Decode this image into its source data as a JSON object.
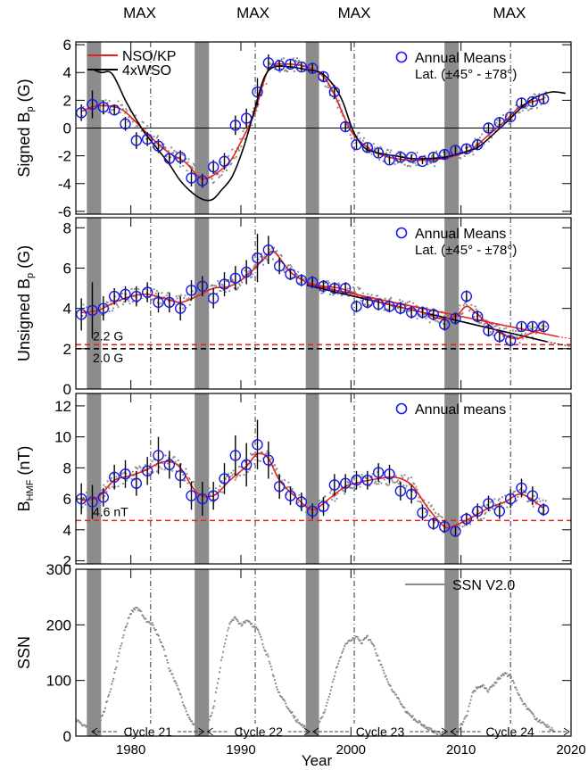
{
  "figure": {
    "max_labels": [
      {
        "text": "MAX",
        "year": 1980.8
      },
      {
        "text": "MAX",
        "year": 1991.1
      },
      {
        "text": "MAX",
        "year": 2000.3
      },
      {
        "text": "MAX",
        "year": 2014.4
      }
    ],
    "xlabel": "Year",
    "xlim": [
      1975,
      2020
    ],
    "xticks": [
      "1980",
      "1990",
      "2000",
      "2010",
      "2020"
    ],
    "xtick_values": [
      1980,
      1990,
      2000,
      2010,
      2020
    ],
    "minimum_bands": [
      [
        1976.0,
        1977.3
      ],
      [
        1985.8,
        1987.1
      ],
      [
        1995.9,
        1997.1
      ],
      [
        2008.5,
        2009.8
      ]
    ],
    "max_lines": [
      1981.8,
      1991.3,
      2000.3,
      2014.5
    ],
    "colors": {
      "red": "#e82020",
      "blue": "#1a1ae6",
      "band": "#8c8c8c",
      "gray": "#8c8c8c",
      "black": "#000000"
    }
  },
  "chart_data": [
    {
      "type": "line",
      "ylabel": "Signed B",
      "ylabel_sub": "p",
      "ylabel_unit": " (G)",
      "ylim": [
        -6.2,
        6.2
      ],
      "yticks": [
        "6",
        "4",
        "2",
        "0",
        "-2",
        "-4",
        "-6"
      ],
      "ytick_values": [
        6,
        4,
        2,
        0,
        -2,
        -4,
        -6
      ],
      "legend": [
        {
          "name": "NSO/KP",
          "color": "#e82020"
        },
        {
          "name": "4xWSO",
          "color": "#000000"
        }
      ],
      "legend_right": {
        "label": "Annual Means",
        "note": "Lat. (±45° - ±78°)"
      },
      "zero_line": true,
      "series": [
        {
          "name": "NSO/KP",
          "x": [
            1975.5,
            1977,
            1979,
            1980.5,
            1982,
            1983.5,
            1985,
            1986.3,
            1987.5,
            1989,
            1990,
            1991.2,
            1992.5,
            1994,
            1996,
            1997.5,
            1998.5,
            2000,
            2001.5,
            2003,
            2005,
            2007,
            2009,
            2011,
            2012.5,
            2014,
            2015.5,
            2017.5
          ],
          "y": [
            1.2,
            1.6,
            1.4,
            0.4,
            -0.8,
            -1.8,
            -2.5,
            -3.6,
            -3.4,
            -2.4,
            -1,
            1,
            4.2,
            4.6,
            4.4,
            3.7,
            2.4,
            -0.2,
            -1.4,
            -2,
            -2.3,
            -2.3,
            -2.1,
            -1.5,
            -0.5,
            0.5,
            1.6,
            2.1
          ]
        },
        {
          "name": "4xWSO",
          "x": [
            1976.6,
            1977.3,
            1978.3,
            1979.5,
            1980.5,
            1981.3,
            1982.5,
            1983.5,
            1984.5,
            1985.8,
            1986.8,
            1987.5,
            1988.2,
            1989.2,
            1990.2,
            1991.2,
            1992.1,
            1993,
            1994.5,
            1996,
            1997.2,
            1998.2,
            1999.2,
            2000.2,
            2001.2,
            2002.5,
            2004,
            2005.5,
            2007,
            2008.5,
            2010,
            2011.5,
            2013,
            2014.5,
            2015.8,
            2017,
            2018.3,
            2019.5
          ],
          "y": [
            4.2,
            4.0,
            3.9,
            2.0,
            0.6,
            -0.4,
            -1.6,
            -2.6,
            -3.8,
            -4.8,
            -5.2,
            -5.1,
            -4.5,
            -3.5,
            -1.5,
            1.2,
            3.6,
            4.4,
            4.4,
            4.2,
            4.0,
            3.3,
            2.0,
            -0.2,
            -1.4,
            -1.8,
            -2.0,
            -2.2,
            -2.2,
            -2.1,
            -1.8,
            -1.4,
            -0.4,
            0.7,
            1.7,
            2.3,
            2.6,
            2.5
          ]
        }
      ],
      "annual_means": {
        "x": [
          1975.5,
          1976.5,
          1977.5,
          1978.5,
          1979.5,
          1980.5,
          1981.5,
          1982.5,
          1983.5,
          1984.5,
          1985.5,
          1986.5,
          1987.5,
          1988.5,
          1989.5,
          1990.5,
          1991.5,
          1992.5,
          1993.5,
          1994.5,
          1995.5,
          1996.5,
          1997.5,
          1998.5,
          1999.5,
          2000.5,
          2001.5,
          2002.5,
          2003.5,
          2004.5,
          2005.5,
          2006.5,
          2007.5,
          2008.5,
          2009.5,
          2010.5,
          2011.5,
          2012.5,
          2013.5,
          2014.5,
          2015.5,
          2016.5,
          2017.5
        ],
        "y": [
          1.1,
          1.7,
          1.5,
          1.3,
          0.3,
          -0.9,
          -0.8,
          -1.3,
          -2.2,
          -2.1,
          -3.6,
          -3.8,
          -2.8,
          -2.4,
          0.2,
          0.7,
          2.6,
          4.7,
          4.5,
          4.6,
          4.4,
          4.3,
          3.7,
          2.6,
          0.1,
          -1.2,
          -1.4,
          -1.8,
          -2.3,
          -2.1,
          -2.1,
          -2.4,
          -2.1,
          -1.9,
          -1.6,
          -1.5,
          -1.2,
          0.0,
          0.4,
          0.8,
          1.8,
          1.9,
          2.1
        ],
        "err": [
          0.6,
          1.0,
          0.5,
          0.4,
          0.5,
          0.6,
          0.5,
          0.5,
          0.4,
          0.5,
          0.6,
          0.5,
          0.5,
          0.6,
          0.7,
          0.7,
          1.0,
          0.6,
          0.4,
          0.3,
          0.3,
          0.4,
          0.4,
          0.5,
          0.4,
          0.3,
          0.3,
          0.3,
          0.3,
          0.3,
          0.2,
          0.2,
          0.3,
          0.3,
          0.3,
          0.4,
          0.4,
          0.4,
          0.4,
          0.4,
          0.4,
          0.3,
          0.3
        ]
      }
    },
    {
      "type": "line",
      "ylabel": "Unsigned B",
      "ylabel_sub": "p",
      "ylabel_unit": " (G)",
      "ylim": [
        0,
        8.5
      ],
      "yticks": [
        "8",
        "6",
        "4",
        "2",
        "0"
      ],
      "ytick_values": [
        8,
        6,
        4,
        2,
        0
      ],
      "legend_right": {
        "label": "Annual Means",
        "note": "Lat. (±45° - ±78°)"
      },
      "reference_lines": [
        {
          "value": 2.2,
          "label": "2.2 G",
          "color": "#e82020"
        },
        {
          "value": 2.0,
          "label": "2.0 G",
          "color": "#000000"
        }
      ],
      "trend_lines": [
        {
          "x": [
            1996,
            2018.8
          ],
          "y": [
            5.2,
            2.6
          ],
          "color": "#e82020"
        },
        {
          "x": [
            1996,
            2017.8
          ],
          "y": [
            5.15,
            2.35
          ],
          "color": "#000000"
        }
      ],
      "series": [
        {
          "name": "NSO/KP",
          "x": [
            1975.5,
            1977,
            1978.5,
            1980,
            1981.5,
            1983,
            1984.5,
            1986,
            1987.5,
            1989,
            1990.5,
            1992,
            1993,
            1994.5,
            1996,
            1997.5,
            1999,
            2000.5,
            2002,
            2003.5,
            2005,
            2006.5,
            2008,
            2009.5,
            2010.5,
            2011.5,
            2012.5,
            2013.5,
            2015,
            2016.5,
            2017.5
          ],
          "y": [
            3.8,
            3.9,
            4.3,
            4.6,
            4.7,
            4.5,
            4.3,
            4.6,
            5.0,
            5.1,
            5.6,
            6.4,
            6.8,
            5.8,
            5.3,
            5.1,
            5.0,
            4.7,
            4.4,
            4.2,
            4.0,
            3.8,
            3.5,
            3.6,
            4.1,
            3.7,
            3.2,
            2.8,
            2.5,
            2.8,
            3.0
          ]
        }
      ],
      "annual_means": {
        "x": [
          1975.5,
          1976.5,
          1977.5,
          1978.5,
          1979.5,
          1980.5,
          1981.5,
          1982.5,
          1983.5,
          1984.5,
          1985.5,
          1986.5,
          1987.5,
          1988.5,
          1989.5,
          1990.5,
          1991.5,
          1992.5,
          1993.5,
          1994.5,
          1995.5,
          1996.5,
          1997.5,
          1998.5,
          1999.5,
          2000.5,
          2001.5,
          2002.5,
          2003.5,
          2004.5,
          2005.5,
          2006.5,
          2007.5,
          2008.5,
          2009.5,
          2010.5,
          2011.5,
          2012.5,
          2013.5,
          2014.5,
          2015.5,
          2016.5,
          2017.5
        ],
        "y": [
          3.7,
          3.9,
          4.0,
          4.6,
          4.7,
          4.6,
          4.8,
          4.3,
          4.3,
          4.0,
          4.9,
          5.1,
          4.5,
          5.2,
          5.5,
          5.8,
          6.5,
          6.9,
          6.1,
          5.7,
          5.4,
          5.3,
          5.1,
          5.0,
          5.0,
          4.1,
          4.3,
          4.2,
          4.1,
          4.0,
          3.8,
          3.8,
          3.7,
          3.2,
          3.5,
          4.6,
          3.6,
          2.9,
          2.6,
          2.4,
          3.1,
          3.1,
          3.1
        ],
        "err": [
          0.8,
          1.4,
          0.6,
          0.4,
          0.4,
          0.5,
          0.5,
          0.5,
          0.5,
          0.6,
          0.5,
          0.5,
          0.5,
          0.6,
          0.6,
          0.6,
          1.2,
          0.7,
          0.4,
          0.3,
          0.3,
          0.3,
          0.3,
          0.3,
          0.3,
          0.3,
          0.3,
          0.3,
          0.3,
          0.3,
          0.3,
          0.3,
          0.3,
          0.3,
          0.3,
          0.3,
          0.3,
          0.3,
          0.3,
          0.3,
          0.2,
          0.2,
          0.2
        ]
      }
    },
    {
      "type": "line",
      "ylabel": "B",
      "ylabel_sub": "HMF",
      "ylabel_unit": " (nT)",
      "ylim": [
        1.8,
        12.8
      ],
      "yticks": [
        "12",
        "10",
        "8",
        "6",
        "4",
        "2"
      ],
      "ytick_values": [
        12,
        10,
        8,
        6,
        4,
        2
      ],
      "legend_right": {
        "label": "Annual means"
      },
      "reference_lines": [
        {
          "value": 4.6,
          "label": "4.6 nT",
          "color": "#e82020"
        }
      ],
      "series": [
        {
          "name": "NSO/KP",
          "x": [
            1975.5,
            1977,
            1978.5,
            1980,
            1981.5,
            1982.5,
            1983.5,
            1984.5,
            1986,
            1987.5,
            1989,
            1990.5,
            1991.5,
            1992.5,
            1993.5,
            1995,
            1996.5,
            1998,
            1999.5,
            2001,
            2002.5,
            2004,
            2005.5,
            2007,
            2008.5,
            2009.5,
            2011,
            2012.5,
            2014,
            2015.5,
            2017.5
          ],
          "y": [
            5.9,
            6.1,
            7.2,
            7.5,
            7.9,
            8.3,
            8.4,
            8.0,
            6.4,
            6.2,
            7.2,
            8.1,
            8.9,
            8.6,
            7.2,
            6.1,
            5.3,
            6.0,
            6.8,
            7.1,
            7.3,
            7.4,
            6.9,
            5.4,
            4.2,
            4.3,
            4.8,
            5.4,
            5.8,
            6.3,
            5.4
          ]
        }
      ],
      "annual_means": {
        "x": [
          1975.5,
          1976.5,
          1977.5,
          1978.5,
          1979.5,
          1980.5,
          1981.5,
          1982.5,
          1983.5,
          1984.5,
          1985.5,
          1986.5,
          1987.5,
          1988.5,
          1989.5,
          1990.5,
          1991.5,
          1992.5,
          1993.5,
          1994.5,
          1995.5,
          1996.5,
          1997.5,
          1998.5,
          1999.5,
          2000.5,
          2001.5,
          2002.5,
          2003.5,
          2004.5,
          2005.5,
          2006.5,
          2007.5,
          2008.5,
          2009.5,
          2010.5,
          2011.5,
          2012.5,
          2013.5,
          2014.5,
          2015.5,
          2016.5,
          2017.5
        ],
        "y": [
          6.0,
          5.8,
          6.1,
          7.4,
          7.6,
          7.0,
          7.8,
          8.8,
          8.2,
          7.5,
          6.2,
          6.0,
          6.2,
          7.3,
          8.8,
          8.2,
          9.5,
          8.5,
          6.8,
          6.2,
          5.8,
          5.2,
          5.5,
          6.9,
          7.0,
          7.2,
          7.2,
          7.7,
          7.6,
          6.5,
          6.3,
          5.1,
          4.4,
          4.2,
          3.9,
          4.7,
          5.2,
          5.7,
          5.2,
          6.0,
          6.7,
          6.2,
          5.3
        ],
        "err": [
          1.0,
          1.1,
          0.6,
          0.8,
          0.9,
          0.8,
          0.9,
          1.2,
          0.9,
          0.8,
          0.9,
          1.1,
          0.9,
          1.0,
          1.3,
          1.4,
          1.6,
          1.2,
          0.8,
          0.6,
          0.6,
          0.5,
          0.6,
          0.7,
          0.6,
          0.6,
          0.6,
          0.6,
          0.6,
          0.6,
          0.6,
          0.5,
          0.4,
          0.4,
          0.3,
          0.4,
          0.5,
          0.5,
          0.5,
          0.6,
          0.6,
          0.6,
          0.4
        ]
      }
    },
    {
      "type": "scatter",
      "ylabel": "SSN",
      "ylim": [
        0,
        300
      ],
      "yticks": [
        "300",
        "200",
        "100",
        "0"
      ],
      "ytick_values": [
        300,
        200,
        100,
        0
      ],
      "legend_right": {
        "label": "SSN V2.0",
        "color": "#8c8c8c"
      },
      "ssn_curve": {
        "x": [
          1975,
          1975.5,
          1976,
          1976.5,
          1977,
          1977.5,
          1978,
          1978.5,
          1979,
          1979.5,
          1980,
          1980.5,
          1981,
          1981.5,
          1982,
          1982.5,
          1983,
          1983.5,
          1984,
          1984.5,
          1985,
          1985.5,
          1986,
          1986.5,
          1987,
          1987.5,
          1988,
          1988.5,
          1989,
          1989.5,
          1990,
          1990.5,
          1991,
          1991.5,
          1992,
          1992.5,
          1993,
          1993.5,
          1994,
          1994.5,
          1995,
          1995.5,
          1996,
          1996.5,
          1997,
          1997.5,
          1998,
          1998.5,
          1999,
          1999.5,
          2000,
          2000.5,
          2001,
          2001.5,
          2002,
          2002.5,
          2003,
          2003.5,
          2004,
          2004.5,
          2005,
          2005.5,
          2006,
          2006.5,
          2007,
          2007.5,
          2008,
          2008.5,
          2009,
          2009.5,
          2010,
          2010.5,
          2011,
          2011.5,
          2012,
          2012.5,
          2013,
          2013.5,
          2014,
          2014.5,
          2015,
          2015.5,
          2016,
          2016.5,
          2017,
          2017.5,
          2018,
          2018.5
        ],
        "y": [
          30,
          22,
          17,
          15,
          22,
          40,
          75,
          110,
          155,
          195,
          222,
          232,
          220,
          205,
          200,
          180,
          155,
          120,
          100,
          75,
          45,
          25,
          18,
          14,
          22,
          50,
          110,
          165,
          205,
          212,
          200,
          207,
          200,
          195,
          165,
          140,
          105,
          75,
          60,
          45,
          30,
          20,
          12,
          10,
          18,
          40,
          70,
          110,
          140,
          165,
          172,
          178,
          168,
          178,
          165,
          140,
          115,
          90,
          78,
          60,
          45,
          35,
          28,
          20,
          14,
          8,
          5,
          3,
          3,
          8,
          18,
          35,
          75,
          88,
          90,
          82,
          92,
          105,
          112,
          108,
          85,
          65,
          50,
          38,
          28,
          22,
          15,
          10
        ]
      },
      "cycle_labels": [
        {
          "text": "Cycle 21",
          "x0": 1976.3,
          "x1": 1986.8
        },
        {
          "text": "Cycle 22",
          "x0": 1986.8,
          "x1": 1996.4
        },
        {
          "text": "Cycle 23",
          "x0": 1996.4,
          "x1": 2008.9
        },
        {
          "text": "Cycle 24",
          "x0": 2008.9,
          "x1": 2020
        }
      ]
    }
  ]
}
